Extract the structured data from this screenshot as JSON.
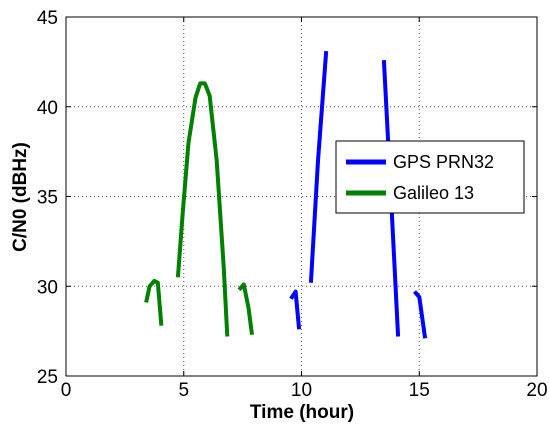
{
  "chart_data": {
    "type": "line",
    "xlabel": "Time (hour)",
    "ylabel": "C/N0 (dBHz)",
    "xlim": [
      0,
      20
    ],
    "ylim": [
      25,
      45
    ],
    "xticks": [
      "0",
      "5",
      "10",
      "15",
      "20"
    ],
    "yticks": [
      "25",
      "30",
      "35",
      "40",
      "45"
    ],
    "grid": true,
    "legend_position": "right",
    "series": [
      {
        "name": "GPS PRN32",
        "color": "#0000ff",
        "segments": [
          [
            [
              9.55,
              29.3
            ],
            [
              9.75,
              29.7
            ],
            [
              9.9,
              27.6
            ]
          ],
          [
            [
              10.4,
              30.2
            ],
            [
              10.7,
              37.0
            ],
            [
              11.05,
              43.1
            ]
          ],
          [
            [
              13.5,
              42.6
            ],
            [
              13.8,
              35.0
            ],
            [
              14.1,
              27.2
            ]
          ],
          [
            [
              14.8,
              29.7
            ],
            [
              15.0,
              29.4
            ],
            [
              15.25,
              27.1
            ]
          ]
        ]
      },
      {
        "name": "Galileo 13",
        "color": "#008000",
        "segments": [
          [
            [
              3.4,
              29.1
            ],
            [
              3.55,
              30.0
            ],
            [
              3.75,
              30.3
            ],
            [
              3.9,
              30.2
            ],
            [
              4.05,
              27.8
            ]
          ],
          [
            [
              4.75,
              30.5
            ],
            [
              4.95,
              34.0
            ],
            [
              5.2,
              38.0
            ],
            [
              5.5,
              40.5
            ],
            [
              5.7,
              41.3
            ],
            [
              5.9,
              41.3
            ],
            [
              6.1,
              40.6
            ],
            [
              6.4,
              37.0
            ],
            [
              6.7,
              31.0
            ],
            [
              6.85,
              27.2
            ]
          ],
          [
            [
              7.35,
              29.8
            ],
            [
              7.55,
              30.1
            ],
            [
              7.75,
              28.8
            ],
            [
              7.9,
              27.3
            ]
          ]
        ]
      }
    ]
  }
}
